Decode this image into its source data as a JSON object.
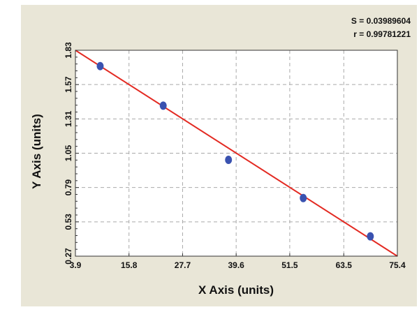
{
  "chart_data": {
    "type": "scatter",
    "title": "",
    "xlabel": "X Axis (units)",
    "ylabel": "Y Axis (units)",
    "xlim": [
      3.9,
      75.4
    ],
    "ylim": [
      0.27,
      1.83
    ],
    "xticks": [
      "3.9",
      "15.8",
      "27.7",
      "39.6",
      "51.5",
      "63.5",
      "75.4"
    ],
    "yticks": [
      "0.27",
      "0.53",
      "0.79",
      "1.05",
      "1.31",
      "1.57",
      "1.83"
    ],
    "grid": true,
    "stats": {
      "s_text": "S = 0.03989604",
      "r_text": "r = 0.99781221"
    },
    "series": [
      {
        "points": [
          {
            "x": 9.4,
            "y": 1.71
          },
          {
            "x": 23.4,
            "y": 1.41
          },
          {
            "x": 37.9,
            "y": 1.0
          },
          {
            "x": 54.5,
            "y": 0.71
          },
          {
            "x": 69.4,
            "y": 0.42
          }
        ]
      }
    ],
    "fit_line": {
      "from": {
        "x": 3.9,
        "y": 1.83
      },
      "to": {
        "x": 75.4,
        "y": 0.27
      }
    },
    "colors": {
      "background": "#e9e6d7",
      "plot_background": "#ffffff",
      "point": "#3a52b0",
      "fit_line": "#e32a22",
      "grid": "#a9a9a9"
    }
  }
}
